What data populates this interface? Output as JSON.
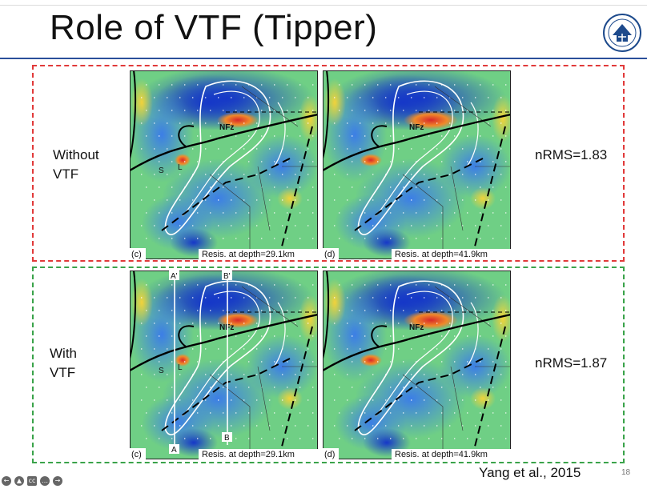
{
  "slide": {
    "title": "Role of VTF (Tipper)",
    "page_number": "18",
    "citation": "Yang et al., 2015"
  },
  "logo": {
    "name": "university-seal-logo",
    "color": "#1d4a8c"
  },
  "rows": [
    {
      "label_line1": "Without",
      "label_line2": "VTF",
      "nrms": "nRMS=1.83",
      "border_color": "#e13a3a",
      "maps": [
        {
          "panel": "(c)",
          "caption": "Resis. at depth=29.1km",
          "fault_label": "NFz",
          "s_label": "S",
          "l_label": "L"
        },
        {
          "panel": "(d)",
          "caption": "Resis. at depth=41.9km",
          "fault_label": "NFz"
        }
      ]
    },
    {
      "label_line1": "With",
      "label_line2": "VTF",
      "nrms": "nRMS=1.87",
      "border_color": "#3aa34a",
      "maps": [
        {
          "panel": "(c)",
          "caption": "Resis. at depth=29.1km",
          "fault_label": "NFz",
          "s_label": "S",
          "l_label": "L",
          "section_a_top": "A'",
          "section_a_bottom": "A",
          "section_b_top": "B'",
          "section_b_bottom": "B"
        },
        {
          "panel": "(d)",
          "caption": "Resis. at depth=41.9km",
          "fault_label": "NFz"
        }
      ]
    }
  ],
  "navigation": {
    "icons": [
      "prev-icon",
      "pointer-icon",
      "cc-icon",
      "more-icon",
      "next-icon"
    ]
  },
  "colors": {
    "title_rule": "#2b4f9a",
    "map_low": "#1537c8",
    "map_mid": "#58c88a",
    "map_high": "#d8282a"
  }
}
